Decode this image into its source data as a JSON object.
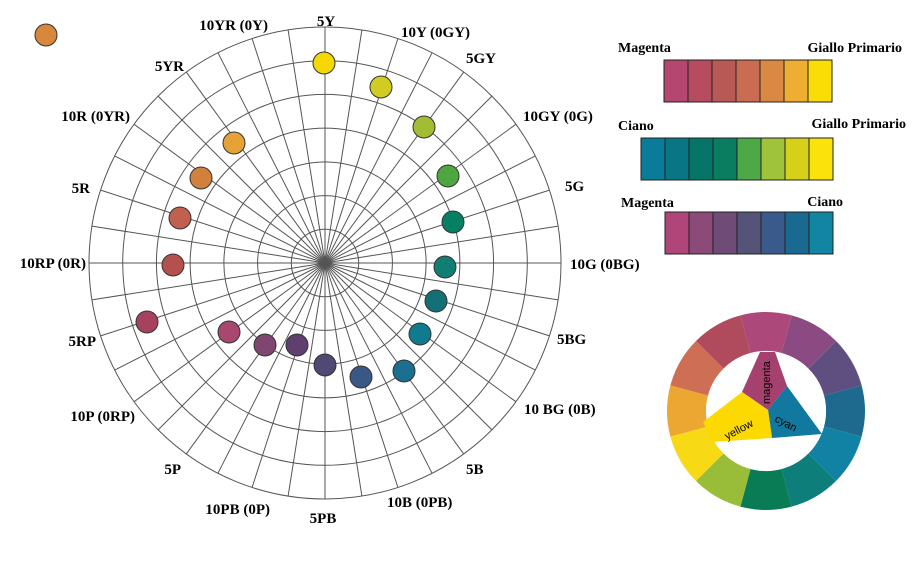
{
  "polar_chart": {
    "hue_labels": [
      "5Y",
      "10Y (0GY)",
      "5GY",
      "10GY (0G)",
      "5G",
      "10G (0BG)",
      "5BG",
      "10 BG (0B)",
      "5B",
      "10B (0PB)",
      "5PB",
      "10PB (0P)",
      "5P",
      "10P (0RP)",
      "5RP",
      "10RP (0R)",
      "5R",
      "10R (0YR)",
      "5YR",
      "10YR (0Y)"
    ],
    "ring_count": 7,
    "spoke_count": 40,
    "dot_colors": [
      "#f5d800",
      "#d2cc22",
      "#a2bc34",
      "#4ea640",
      "#068063",
      "#117e72",
      "#137076",
      "#107b8e",
      "#1b6f91",
      "#3a5885",
      "#4f4974",
      "#5f3f6e",
      "#7e4670",
      "#a84870",
      "#a6425e",
      "#b4504e",
      "#c1604f",
      "#d2813c",
      "#e6a236"
    ],
    "legend_dot_color": "#d8873c"
  },
  "strips": [
    {
      "left_label": "Magenta",
      "right_label": "Giallo Primario",
      "colors": [
        "#b5466f",
        "#b74c61",
        "#b85956",
        "#c96c51",
        "#d98943",
        "#eeae32",
        "#f9dd05"
      ]
    },
    {
      "left_label": "Ciano",
      "right_label": "Giallo Primario",
      "colors": [
        "#0a7b99",
        "#087684",
        "#077468",
        "#0a7c60",
        "#4ea848",
        "#9fc33a",
        "#d6d019",
        "#fbe20a"
      ]
    },
    {
      "left_label": "Magenta",
      "right_label": "Ciano",
      "colors": [
        "#b0457a",
        "#8b4a78",
        "#6e4c77",
        "#555378",
        "#3a5a8c",
        "#1a6990",
        "#1285a2"
      ]
    }
  ],
  "color_wheel": {
    "segments": [
      "#ad487a",
      "#8b4b82",
      "#5e4f80",
      "#1d6a8e",
      "#1182a4",
      "#0e7e7b",
      "#0a7c55",
      "#9abd39",
      "#f7d915",
      "#eba732",
      "#cd6e55",
      "#b04a5d"
    ],
    "triangle": {
      "magenta_label": "magenta",
      "magenta_color": "#a5416e",
      "cyan_label": "cyan",
      "cyan_color": "#11789f",
      "yellow_label": "yellow",
      "yellow_color": "#fcd900"
    }
  }
}
